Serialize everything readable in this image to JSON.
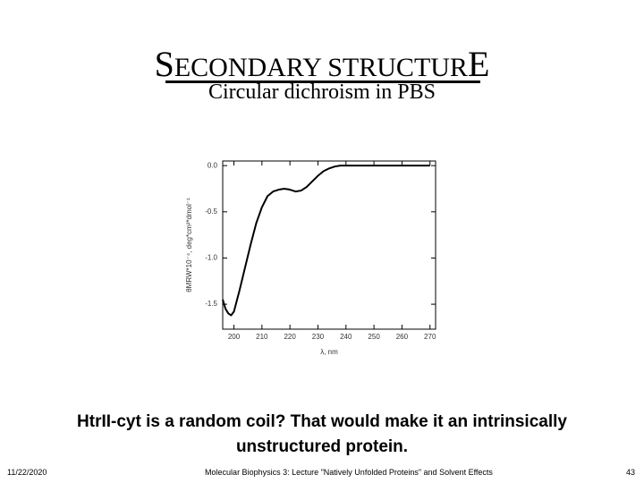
{
  "slide": {
    "title": [
      "S",
      "ECONDARY STRUCTUR",
      "E"
    ],
    "subtitle": "Circular dichroism in PBS",
    "caption": "HtrII-cyt is a random coil? That would make it an intrinsically unstructured protein.",
    "footer": {
      "date": "11/22/2020",
      "center": "Molecular Biophysics 3: Lecture \"Natively Unfolded Proteins\" and Solvent Effects",
      "page": "43"
    }
  },
  "chart_data": {
    "type": "line",
    "x_label": "λ, nm",
    "y_label": "θMRW*10⁻⁴, deg*cm²*dmol⁻¹",
    "x": [
      196,
      197,
      198,
      199,
      200,
      202,
      204,
      206,
      208,
      210,
      212,
      214,
      216,
      218,
      220,
      222,
      224,
      226,
      228,
      230,
      232,
      234,
      236,
      238,
      240,
      250,
      260,
      270
    ],
    "series": [
      {
        "color": "#000000",
        "values": [
          -1.45,
          -1.55,
          -1.6,
          -1.62,
          -1.58,
          -1.35,
          -1.1,
          -0.85,
          -0.62,
          -0.45,
          -0.33,
          -0.28,
          -0.26,
          -0.25,
          -0.26,
          -0.28,
          -0.27,
          -0.23,
          -0.17,
          -0.11,
          -0.06,
          -0.03,
          -0.01,
          0,
          0,
          0,
          0,
          0
        ]
      }
    ],
    "xlim": [
      196,
      272
    ],
    "ylim": [
      -1.77,
      0.05
    ],
    "xticks": [
      200,
      210,
      220,
      230,
      240,
      250,
      260,
      270
    ],
    "yticks": [
      {
        "value": 0,
        "label": "0.0"
      },
      -0.5,
      {
        "value": -1,
        "label": "-1.0"
      },
      -1.5
    ]
  }
}
